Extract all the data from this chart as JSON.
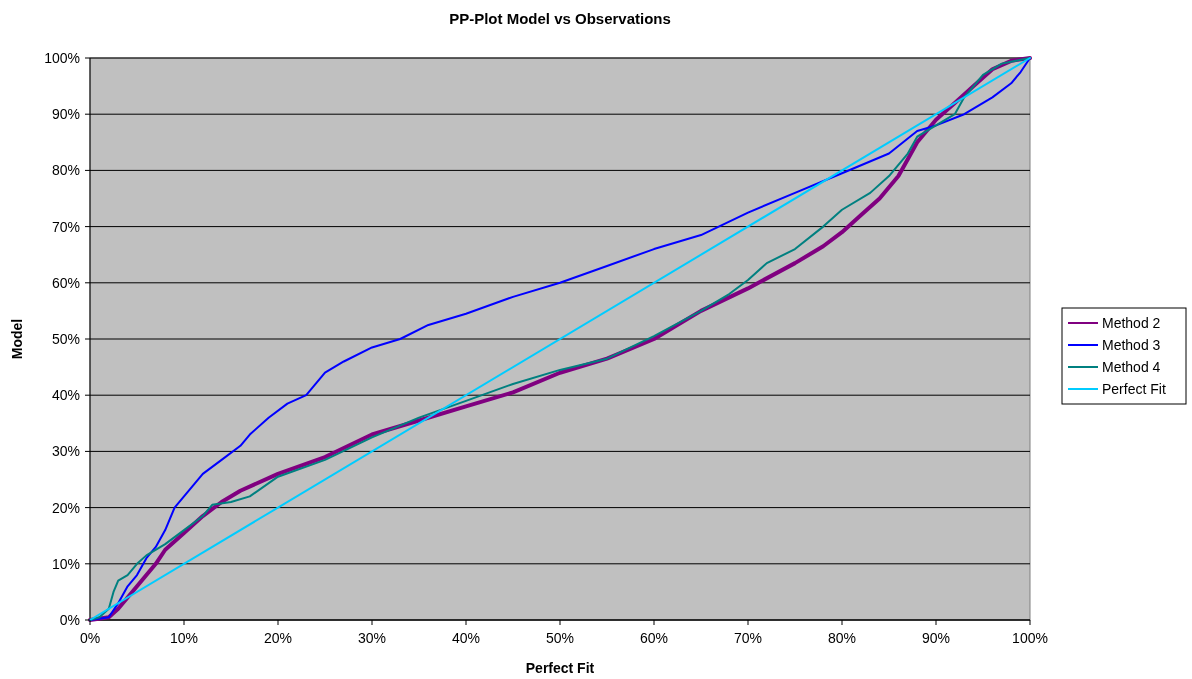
{
  "chart_data": {
    "type": "line",
    "title": "PP-Plot Model vs Observations",
    "xlabel": "Perfect Fit",
    "ylabel": "Model",
    "xlim": [
      0,
      100
    ],
    "ylim": [
      0,
      100
    ],
    "xticks": [
      {
        "value": 0,
        "label": "0%"
      },
      {
        "value": 10,
        "label": "10%"
      },
      {
        "value": 20,
        "label": "20%"
      },
      {
        "value": 30,
        "label": "30%"
      },
      {
        "value": 40,
        "label": "40%"
      },
      {
        "value": 50,
        "label": "50%"
      },
      {
        "value": 60,
        "label": "60%"
      },
      {
        "value": 70,
        "label": "70%"
      },
      {
        "value": 80,
        "label": "80%"
      },
      {
        "value": 90,
        "label": "90%"
      },
      {
        "value": 100,
        "label": "100%"
      }
    ],
    "yticks": [
      {
        "value": 0,
        "label": "0%"
      },
      {
        "value": 10,
        "label": "10%"
      },
      {
        "value": 20,
        "label": "20%"
      },
      {
        "value": 30,
        "label": "30%"
      },
      {
        "value": 40,
        "label": "40%"
      },
      {
        "value": 50,
        "label": "50%"
      },
      {
        "value": 60,
        "label": "60%"
      },
      {
        "value": 70,
        "label": "70%"
      },
      {
        "value": 80,
        "label": "80%"
      },
      {
        "value": 90,
        "label": "90%"
      },
      {
        "value": 100,
        "label": "100%"
      }
    ],
    "grid": "y",
    "legend": "right",
    "series": [
      {
        "name": "Method 2",
        "color": "#800080",
        "x": [
          0,
          2,
          3,
          4,
          5,
          6,
          7,
          8,
          10,
          12,
          14,
          16,
          20,
          25,
          30,
          35,
          40,
          45,
          50,
          55,
          60,
          65,
          70,
          75,
          78,
          80,
          82,
          84,
          86,
          87,
          88,
          89,
          90,
          92,
          94,
          96,
          98,
          100
        ],
        "values": [
          0,
          0.5,
          2,
          4,
          6,
          8,
          10,
          12.5,
          15.5,
          18.5,
          21,
          23,
          26,
          29,
          33,
          35.5,
          38,
          40.5,
          44,
          46.5,
          50,
          55,
          59,
          63.5,
          66.5,
          69,
          72,
          75,
          79,
          82,
          85,
          87,
          89,
          92,
          95,
          98,
          99.5,
          100
        ]
      },
      {
        "name": "Method 3",
        "color": "#0000ff",
        "x": [
          0,
          2,
          3,
          4,
          5,
          6,
          7,
          8,
          9,
          10,
          11,
          12,
          14,
          16,
          17,
          19,
          21,
          23,
          24,
          25,
          27,
          30,
          33,
          36,
          40,
          45,
          50,
          55,
          60,
          65,
          70,
          75,
          80,
          85,
          88,
          90,
          93,
          96,
          98,
          99,
          100
        ],
        "values": [
          0,
          0.5,
          3,
          6,
          8,
          11,
          13,
          16,
          20,
          22,
          24,
          26,
          28.5,
          31,
          33,
          36,
          38.5,
          40,
          42,
          44,
          46,
          48.5,
          50,
          52.5,
          54.5,
          57.5,
          60,
          63,
          66,
          68.5,
          72.5,
          76,
          79.5,
          83,
          87,
          88,
          90,
          93,
          95.5,
          97.5,
          100
        ]
      },
      {
        "name": "Method 4",
        "color": "#008080",
        "x": [
          0,
          1,
          2,
          2.5,
          3,
          4,
          5,
          6,
          8,
          10,
          12,
          13,
          15,
          17,
          20,
          25,
          30,
          35,
          40,
          45,
          50,
          55,
          60,
          65,
          68,
          70,
          72,
          75,
          78,
          80,
          83,
          85,
          87,
          88,
          90,
          92,
          93,
          95,
          97,
          100
        ],
        "values": [
          0,
          0.5,
          2,
          5,
          7,
          8,
          10,
          11.5,
          13.5,
          16,
          18.5,
          20.5,
          21,
          22,
          25.5,
          28.5,
          32.5,
          36,
          39,
          42,
          44.5,
          46.5,
          50.5,
          55,
          58,
          60.5,
          63.5,
          66,
          70,
          73,
          76,
          79,
          83,
          86,
          88,
          90,
          93,
          97,
          99,
          100
        ]
      },
      {
        "name": "Perfect Fit",
        "color": "#00ccff",
        "x": [
          0,
          100
        ],
        "values": [
          0,
          100
        ]
      }
    ]
  }
}
